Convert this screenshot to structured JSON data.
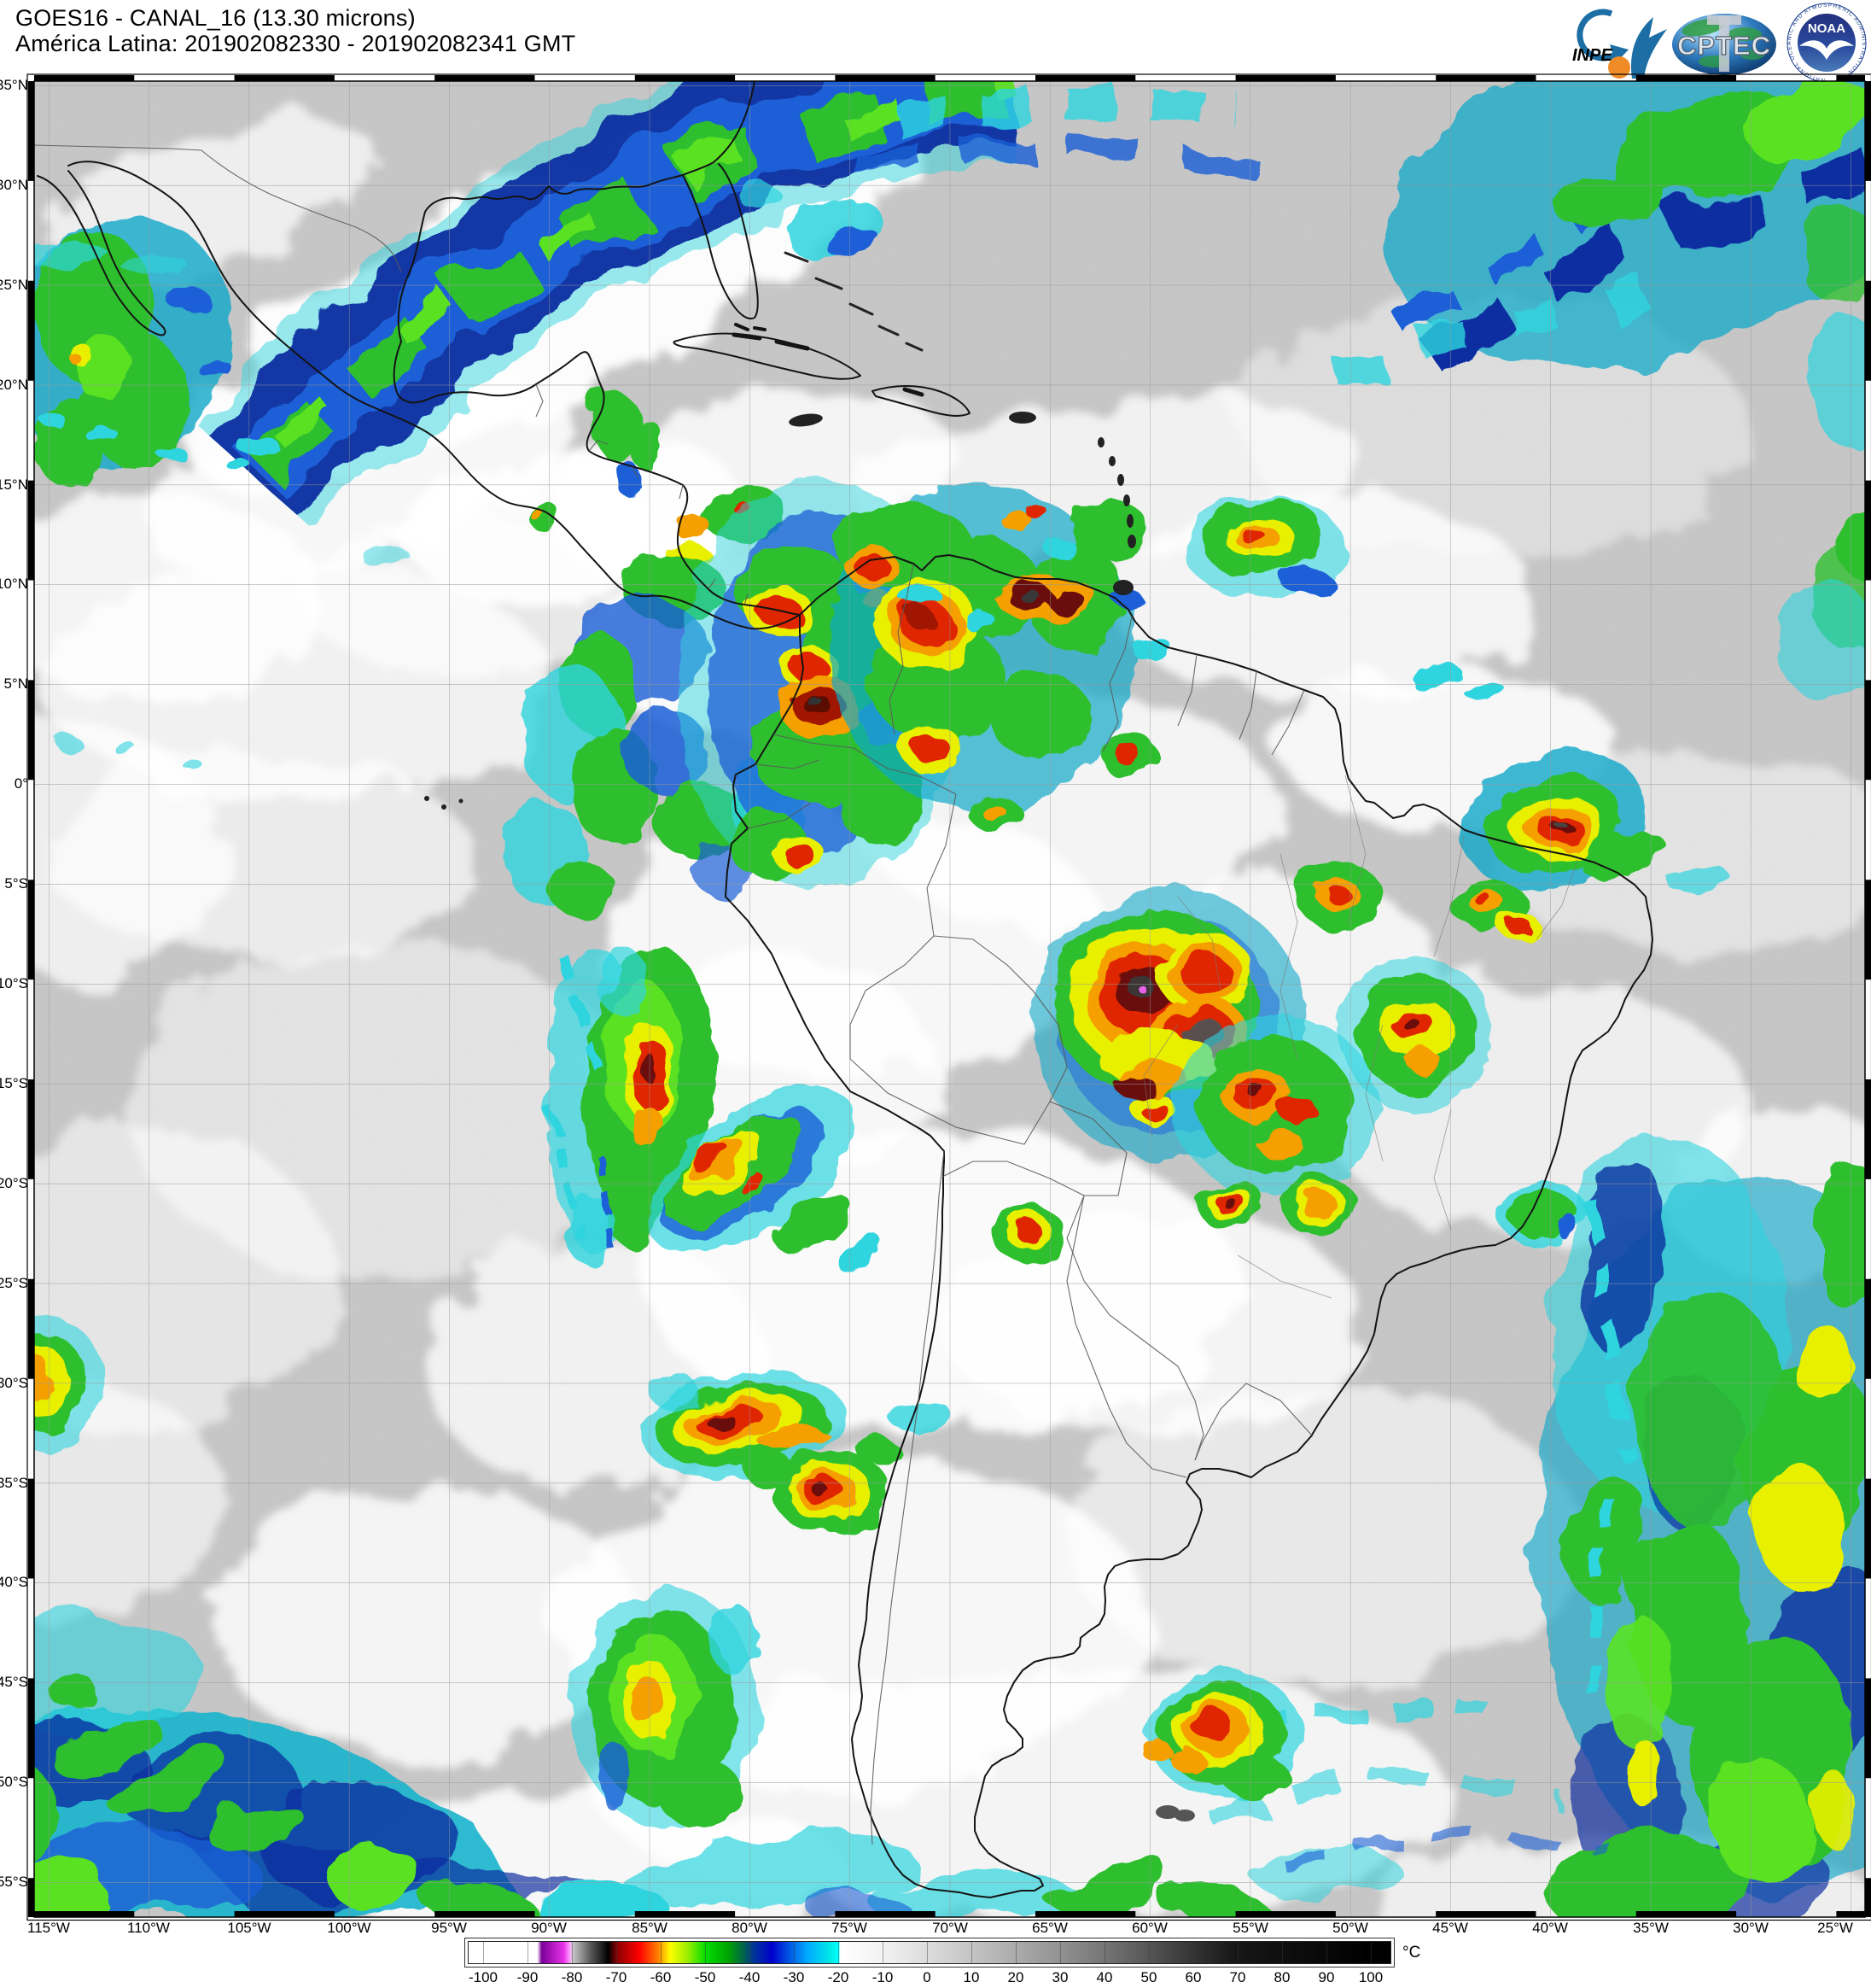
{
  "header": {
    "title_line1": "GOES16 - CANAL_16 (13.30 microns)",
    "title_line2": "América Latina: 201902082330 - 201902082341 GMT"
  },
  "logos": {
    "inpe_label": "INPE",
    "cptec_label": "CPTEC",
    "noaa_label": "NOAA",
    "noaa_ring_text": "NATIONAL OCEANIC AND ATMOSPHERIC ADMINISTRATION"
  },
  "map": {
    "lat_labels": [
      "35°N",
      "30°N",
      "25°N",
      "20°N",
      "15°N",
      "10°N",
      "5°N",
      "0°",
      "5°S",
      "10°S",
      "15°S",
      "20°S",
      "25°S",
      "30°S",
      "35°S",
      "40°S",
      "45°S",
      "50°S",
      "55°S"
    ],
    "lon_labels": [
      "115°W",
      "110°W",
      "105°W",
      "100°W",
      "95°W",
      "90°W",
      "85°W",
      "80°W",
      "75°W",
      "70°W",
      "65°W",
      "60°W",
      "55°W",
      "50°W",
      "45°W",
      "40°W",
      "35°W",
      "30°W",
      "25°W"
    ]
  },
  "colorbar": {
    "unit": "°C",
    "ticks": [
      "-100",
      "-90",
      "-80",
      "-70",
      "-60",
      "-50",
      "-40",
      "-30",
      "-20",
      "-10",
      "0",
      "10",
      "20",
      "30",
      "40",
      "50",
      "60",
      "70",
      "80",
      "90",
      "100"
    ],
    "gradient_stops": [
      {
        "value": -103.5,
        "color": "#ffffff"
      },
      {
        "value": -88,
        "color": "#ffffff"
      },
      {
        "value": -87,
        "color": "#7a0099"
      },
      {
        "value": -82,
        "color": "#e833e8"
      },
      {
        "value": -80.5,
        "color": "#ffaaff"
      },
      {
        "value": -80,
        "color": "#c8c8c8"
      },
      {
        "value": -76,
        "color": "#5a5a5a"
      },
      {
        "value": -72,
        "color": "#000000"
      },
      {
        "value": -70,
        "color": "#8b0000"
      },
      {
        "value": -65,
        "color": "#ff0000"
      },
      {
        "value": -61,
        "color": "#ff7700"
      },
      {
        "value": -58,
        "color": "#ffff00"
      },
      {
        "value": -54,
        "color": "#99ee00"
      },
      {
        "value": -50,
        "color": "#00dd00"
      },
      {
        "value": -45,
        "color": "#00a400"
      },
      {
        "value": -42,
        "color": "#006f3c"
      },
      {
        "value": -39,
        "color": "#003399"
      },
      {
        "value": -35,
        "color": "#0000cc"
      },
      {
        "value": -32,
        "color": "#0044dd"
      },
      {
        "value": -27,
        "color": "#00aaff"
      },
      {
        "value": -22,
        "color": "#00e8e8"
      },
      {
        "value": -20,
        "color": "#00ffff"
      },
      {
        "value": -19.6,
        "color": "#ffffff"
      },
      {
        "value": -10,
        "color": "#f2f2f2"
      },
      {
        "value": 0,
        "color": "#dcdcdc"
      },
      {
        "value": 10,
        "color": "#c4c4c4"
      },
      {
        "value": 20,
        "color": "#ababab"
      },
      {
        "value": 30,
        "color": "#929292"
      },
      {
        "value": 40,
        "color": "#757575"
      },
      {
        "value": 50,
        "color": "#565656"
      },
      {
        "value": 60,
        "color": "#343434"
      },
      {
        "value": 70,
        "color": "#161616"
      },
      {
        "value": 100,
        "color": "#000000"
      },
      {
        "value": 104.6,
        "color": "#000000"
      }
    ]
  }
}
